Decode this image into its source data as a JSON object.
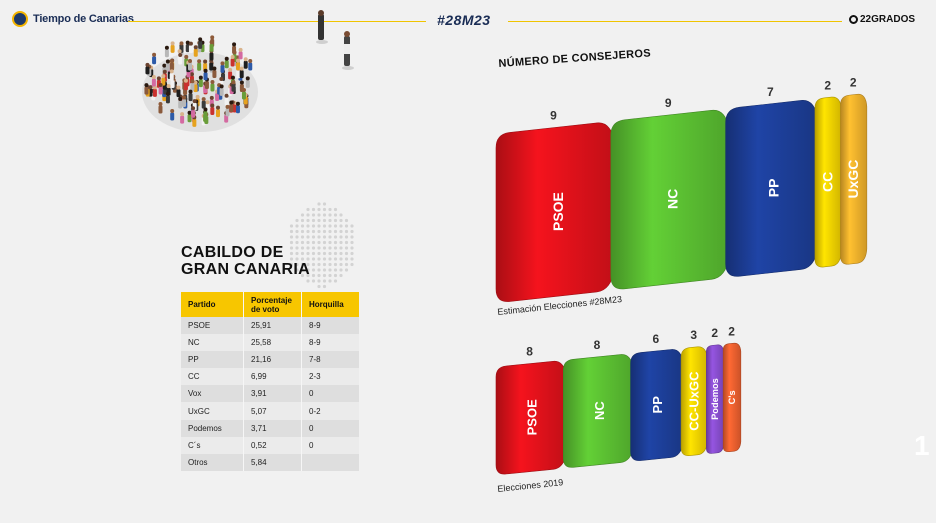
{
  "header": {
    "logo_text": "Tiempo de Canarias",
    "hashtag": "#28M23",
    "brand": "22GRADOS"
  },
  "panel": {
    "title_line1": "CABILDO DE",
    "title_line2": "GRAN CANARIA"
  },
  "table": {
    "headers": [
      "Partido",
      "Porcentaje de voto",
      "Horquilla"
    ],
    "rows": [
      [
        "PSOE",
        "25,91",
        "8-9"
      ],
      [
        "NC",
        "25,58",
        "8-9"
      ],
      [
        "PP",
        "21,16",
        "7-8"
      ],
      [
        "CC",
        "6,99",
        "2-3"
      ],
      [
        "Vox",
        "3,91",
        "0"
      ],
      [
        "UxGC",
        "5,07",
        "0-2"
      ],
      [
        "Podemos",
        "3,71",
        "0"
      ],
      [
        "C´s",
        "0,52",
        "0"
      ],
      [
        "Otros",
        "5,84",
        ""
      ]
    ]
  },
  "colors": {
    "PSOE": "#e3121b",
    "NC": "#5cc132",
    "PP": "#1d3f9a",
    "CC": "#f6d400",
    "UxGC": "#f4b32c",
    "Podemos": "#8a4fd0",
    "Cs": "#f0612f",
    "accent": "#f7c600"
  },
  "chart_data": [
    {
      "type": "bar",
      "title": "NÚMERO DE CONSEJEROS",
      "caption": "Estimación Elecciones #28M23",
      "categories": [
        "PSOE",
        "NC",
        "PP",
        "CC",
        "UxGC"
      ],
      "values": [
        9,
        9,
        7,
        2,
        2
      ]
    },
    {
      "type": "bar",
      "caption": "Elecciones 2019",
      "categories": [
        "PSOE",
        "NC",
        "PP",
        "CC-UxGC",
        "Podemos",
        "C's"
      ],
      "values": [
        8,
        8,
        6,
        3,
        2,
        2
      ]
    }
  ],
  "side_number": "1"
}
